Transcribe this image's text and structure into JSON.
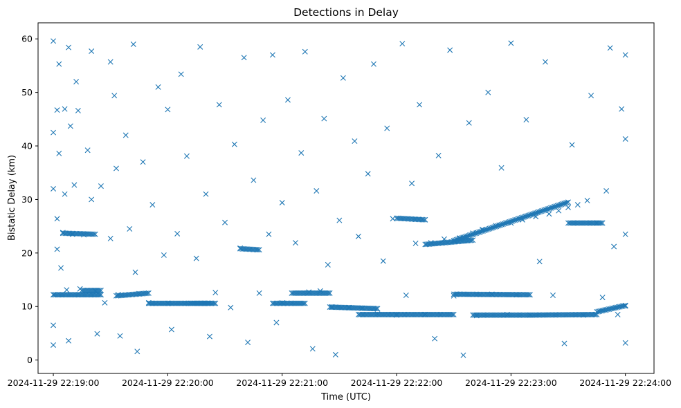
{
  "chart_data": {
    "type": "scatter",
    "title": "Detections in Delay",
    "xlabel": "Time (UTC)",
    "ylabel": "Bistatic Delay (km)",
    "x_unit": "time (UTC)",
    "xlim": [
      "2024-11-29 22:18:52",
      "2024-11-29 22:24:15"
    ],
    "ylim": [
      -2.5,
      63
    ],
    "x_ticks": [
      "2024-11-29 22:19:00",
      "2024-11-29 22:20:00",
      "2024-11-29 22:21:00",
      "2024-11-29 22:22:00",
      "2024-11-29 22:23:00",
      "2024-11-29 22:24:00"
    ],
    "y_ticks": [
      0,
      10,
      20,
      30,
      40,
      50,
      60
    ],
    "marker": "x",
    "marker_color": "#1f77b4",
    "grid": false,
    "legend": "none",
    "series": [
      {
        "points": [
          {
            "t": "22:19:00",
            "y": 59.6
          },
          {
            "t": "22:19:00",
            "y": 42.5
          },
          {
            "t": "22:19:00",
            "y": 32.0
          },
          {
            "t": "22:19:00",
            "y": 12.2
          },
          {
            "t": "22:19:00",
            "y": 6.5
          },
          {
            "t": "22:19:00",
            "y": 2.8
          },
          {
            "t": "22:19:02",
            "y": 46.7
          },
          {
            "t": "22:19:02",
            "y": 26.4
          },
          {
            "t": "22:19:02",
            "y": 20.7
          },
          {
            "t": "22:19:03",
            "y": 55.3
          },
          {
            "t": "22:19:03",
            "y": 38.6
          },
          {
            "t": "22:19:04",
            "y": 17.2
          },
          {
            "t": "22:19:05",
            "y": 23.8
          },
          {
            "t": "22:19:06",
            "y": 46.9
          },
          {
            "t": "22:19:06",
            "y": 31.0
          },
          {
            "t": "22:19:07",
            "y": 13.1
          },
          {
            "t": "22:19:08",
            "y": 58.4
          },
          {
            "t": "22:19:08",
            "y": 3.6
          },
          {
            "t": "22:19:09",
            "y": 43.7
          },
          {
            "t": "22:19:10",
            "y": 23.5
          },
          {
            "t": "22:19:11",
            "y": 32.7
          },
          {
            "t": "22:19:12",
            "y": 52.0
          },
          {
            "t": "22:19:13",
            "y": 46.6
          },
          {
            "t": "22:19:14",
            "y": 13.3
          },
          {
            "t": "22:19:16",
            "y": 23.4
          },
          {
            "t": "22:19:18",
            "y": 39.2
          },
          {
            "t": "22:19:20",
            "y": 57.7
          },
          {
            "t": "22:19:20",
            "y": 30.0
          },
          {
            "t": "22:19:22",
            "y": 12.9
          },
          {
            "t": "22:19:23",
            "y": 4.9
          },
          {
            "t": "22:19:25",
            "y": 32.5
          },
          {
            "t": "22:19:27",
            "y": 10.7
          },
          {
            "t": "22:19:30",
            "y": 55.7
          },
          {
            "t": "22:19:30",
            "y": 22.7
          },
          {
            "t": "22:19:32",
            "y": 49.4
          },
          {
            "t": "22:19:33",
            "y": 35.8
          },
          {
            "t": "22:19:34",
            "y": 12.2
          },
          {
            "t": "22:19:35",
            "y": 4.5
          },
          {
            "t": "22:19:38",
            "y": 42.0
          },
          {
            "t": "22:19:40",
            "y": 24.5
          },
          {
            "t": "22:19:42",
            "y": 59.0
          },
          {
            "t": "22:19:43",
            "y": 16.4
          },
          {
            "t": "22:19:44",
            "y": 1.6
          },
          {
            "t": "22:19:45",
            "y": 12.4
          },
          {
            "t": "22:19:47",
            "y": 37.0
          },
          {
            "t": "22:19:50",
            "y": 10.7
          },
          {
            "t": "22:19:52",
            "y": 29.0
          },
          {
            "t": "22:19:55",
            "y": 51.0
          },
          {
            "t": "22:19:58",
            "y": 19.6
          },
          {
            "t": "22:20:00",
            "y": 46.8
          },
          {
            "t": "22:20:00",
            "y": 10.6
          },
          {
            "t": "22:20:02",
            "y": 5.7
          },
          {
            "t": "22:20:05",
            "y": 23.6
          },
          {
            "t": "22:20:07",
            "y": 53.4
          },
          {
            "t": "22:20:10",
            "y": 38.1
          },
          {
            "t": "22:20:12",
            "y": 10.6
          },
          {
            "t": "22:20:15",
            "y": 19.0
          },
          {
            "t": "22:20:17",
            "y": 58.5
          },
          {
            "t": "22:20:20",
            "y": 31.0
          },
          {
            "t": "22:20:22",
            "y": 4.4
          },
          {
            "t": "22:20:25",
            "y": 12.6
          },
          {
            "t": "22:20:27",
            "y": 47.7
          },
          {
            "t": "22:20:30",
            "y": 25.7
          },
          {
            "t": "22:20:33",
            "y": 9.8
          },
          {
            "t": "22:20:35",
            "y": 40.3
          },
          {
            "t": "22:20:38",
            "y": 20.9
          },
          {
            "t": "22:20:40",
            "y": 56.5
          },
          {
            "t": "22:20:42",
            "y": 3.3
          },
          {
            "t": "22:20:45",
            "y": 33.6
          },
          {
            "t": "22:20:48",
            "y": 12.5
          },
          {
            "t": "22:20:50",
            "y": 44.8
          },
          {
            "t": "22:20:53",
            "y": 23.5
          },
          {
            "t": "22:20:55",
            "y": 57.0
          },
          {
            "t": "22:20:57",
            "y": 7.0
          },
          {
            "t": "22:21:00",
            "y": 10.7
          },
          {
            "t": "22:21:00",
            "y": 29.4
          },
          {
            "t": "22:21:03",
            "y": 48.6
          },
          {
            "t": "22:21:05",
            "y": 10.6
          },
          {
            "t": "22:21:07",
            "y": 21.9
          },
          {
            "t": "22:21:10",
            "y": 38.7
          },
          {
            "t": "22:21:12",
            "y": 57.6
          },
          {
            "t": "22:21:14",
            "y": 12.7
          },
          {
            "t": "22:21:16",
            "y": 2.1
          },
          {
            "t": "22:21:18",
            "y": 31.6
          },
          {
            "t": "22:21:20",
            "y": 12.9
          },
          {
            "t": "22:21:22",
            "y": 45.1
          },
          {
            "t": "22:21:24",
            "y": 17.8
          },
          {
            "t": "22:21:26",
            "y": 9.9
          },
          {
            "t": "22:21:28",
            "y": 1.0
          },
          {
            "t": "22:21:30",
            "y": 26.1
          },
          {
            "t": "22:21:32",
            "y": 52.7
          },
          {
            "t": "22:21:35",
            "y": 9.8
          },
          {
            "t": "22:21:38",
            "y": 40.9
          },
          {
            "t": "22:21:40",
            "y": 23.1
          },
          {
            "t": "22:21:42",
            "y": 9.7
          },
          {
            "t": "22:21:45",
            "y": 34.8
          },
          {
            "t": "22:21:48",
            "y": 55.3
          },
          {
            "t": "22:21:50",
            "y": 8.6
          },
          {
            "t": "22:21:53",
            "y": 18.5
          },
          {
            "t": "22:21:55",
            "y": 43.3
          },
          {
            "t": "22:21:58",
            "y": 26.4
          },
          {
            "t": "22:22:00",
            "y": 8.4
          },
          {
            "t": "22:22:03",
            "y": 59.1
          },
          {
            "t": "22:22:05",
            "y": 12.1
          },
          {
            "t": "22:22:08",
            "y": 33.0
          },
          {
            "t": "22:22:10",
            "y": 21.8
          },
          {
            "t": "22:22:12",
            "y": 47.7
          },
          {
            "t": "22:22:15",
            "y": 8.5
          },
          {
            "t": "22:22:18",
            "y": 21.9
          },
          {
            "t": "22:22:20",
            "y": 4.0
          },
          {
            "t": "22:22:22",
            "y": 38.2
          },
          {
            "t": "22:22:25",
            "y": 22.6
          },
          {
            "t": "22:22:28",
            "y": 57.9
          },
          {
            "t": "22:22:30",
            "y": 12.0
          },
          {
            "t": "22:22:33",
            "y": 22.8
          },
          {
            "t": "22:22:35",
            "y": 0.9
          },
          {
            "t": "22:22:38",
            "y": 44.3
          },
          {
            "t": "22:22:40",
            "y": 23.7
          },
          {
            "t": "22:22:42",
            "y": 8.3
          },
          {
            "t": "22:22:45",
            "y": 24.4
          },
          {
            "t": "22:22:48",
            "y": 50.0
          },
          {
            "t": "22:22:50",
            "y": 12.3
          },
          {
            "t": "22:22:52",
            "y": 25.1
          },
          {
            "t": "22:22:55",
            "y": 35.9
          },
          {
            "t": "22:22:58",
            "y": 8.5
          },
          {
            "t": "22:23:00",
            "y": 25.6
          },
          {
            "t": "22:23:00",
            "y": 59.2
          },
          {
            "t": "22:23:03",
            "y": 12.2
          },
          {
            "t": "22:23:06",
            "y": 26.2
          },
          {
            "t": "22:23:08",
            "y": 44.9
          },
          {
            "t": "22:23:10",
            "y": 8.4
          },
          {
            "t": "22:23:13",
            "y": 26.8
          },
          {
            "t": "22:23:15",
            "y": 18.4
          },
          {
            "t": "22:23:18",
            "y": 55.7
          },
          {
            "t": "22:23:20",
            "y": 27.3
          },
          {
            "t": "22:23:22",
            "y": 12.1
          },
          {
            "t": "22:23:25",
            "y": 27.9
          },
          {
            "t": "22:23:28",
            "y": 3.1
          },
          {
            "t": "22:23:30",
            "y": 28.5
          },
          {
            "t": "22:23:32",
            "y": 40.2
          },
          {
            "t": "22:23:35",
            "y": 29.0
          },
          {
            "t": "22:23:38",
            "y": 8.4
          },
          {
            "t": "22:23:40",
            "y": 29.8
          },
          {
            "t": "22:23:42",
            "y": 49.4
          },
          {
            "t": "22:23:45",
            "y": 25.6
          },
          {
            "t": "22:23:48",
            "y": 11.7
          },
          {
            "t": "22:23:50",
            "y": 31.6
          },
          {
            "t": "22:23:52",
            "y": 58.3
          },
          {
            "t": "22:23:54",
            "y": 21.2
          },
          {
            "t": "22:23:56",
            "y": 8.5
          },
          {
            "t": "22:23:58",
            "y": 46.9
          },
          {
            "t": "22:24:00",
            "y": 23.5
          },
          {
            "t": "22:24:00",
            "y": 10.1
          },
          {
            "t": "22:24:00",
            "y": 57.0
          },
          {
            "t": "22:24:00",
            "y": 3.2
          },
          {
            "t": "22:24:00",
            "y": 41.3
          }
        ]
      }
    ],
    "dense_tracks": [
      {
        "t_start": "22:19:00",
        "t_end": "22:19:25",
        "y_start": 12.2,
        "y_end": 12.2
      },
      {
        "t_start": "22:19:05",
        "t_end": "22:19:22",
        "y_start": 23.7,
        "y_end": 23.5
      },
      {
        "t_start": "22:19:15",
        "t_end": "22:19:25",
        "y_start": 13.0,
        "y_end": 13.0
      },
      {
        "t_start": "22:19:33",
        "t_end": "22:19:50",
        "y_start": 12.0,
        "y_end": 12.5
      },
      {
        "t_start": "22:19:50",
        "t_end": "22:20:22",
        "y_start": 10.6,
        "y_end": 10.6
      },
      {
        "t_start": "22:20:13",
        "t_end": "22:20:25",
        "y_start": 10.6,
        "y_end": 10.6
      },
      {
        "t_start": "22:20:38",
        "t_end": "22:20:48",
        "y_start": 20.8,
        "y_end": 20.6
      },
      {
        "t_start": "22:20:55",
        "t_end": "22:21:12",
        "y_start": 10.6,
        "y_end": 10.6
      },
      {
        "t_start": "22:21:05",
        "t_end": "22:21:25",
        "y_start": 12.5,
        "y_end": 12.5
      },
      {
        "t_start": "22:21:25",
        "t_end": "22:21:50",
        "y_start": 9.9,
        "y_end": 9.6
      },
      {
        "t_start": "22:21:40",
        "t_end": "22:22:00",
        "y_start": 8.5,
        "y_end": 8.5
      },
      {
        "t_start": "22:22:00",
        "t_end": "22:22:15",
        "y_start": 26.5,
        "y_end": 26.2
      },
      {
        "t_start": "22:22:00",
        "t_end": "22:22:30",
        "y_start": 8.5,
        "y_end": 8.5
      },
      {
        "t_start": "22:22:15",
        "t_end": "22:22:40",
        "y_start": 21.6,
        "y_end": 22.4
      },
      {
        "t_start": "22:22:30",
        "t_end": "22:23:30",
        "y_start": 22.3,
        "y_end": 29.5
      },
      {
        "t_start": "22:22:30",
        "t_end": "22:23:10",
        "y_start": 12.3,
        "y_end": 12.2
      },
      {
        "t_start": "22:22:40",
        "t_end": "22:23:10",
        "y_start": 8.4,
        "y_end": 8.4
      },
      {
        "t_start": "22:23:10",
        "t_end": "22:23:45",
        "y_start": 8.4,
        "y_end": 8.5
      },
      {
        "t_start": "22:23:30",
        "t_end": "22:23:48",
        "y_start": 25.6,
        "y_end": 25.6
      },
      {
        "t_start": "22:23:45",
        "t_end": "22:24:00",
        "y_start": 9.0,
        "y_end": 10.2
      }
    ]
  }
}
